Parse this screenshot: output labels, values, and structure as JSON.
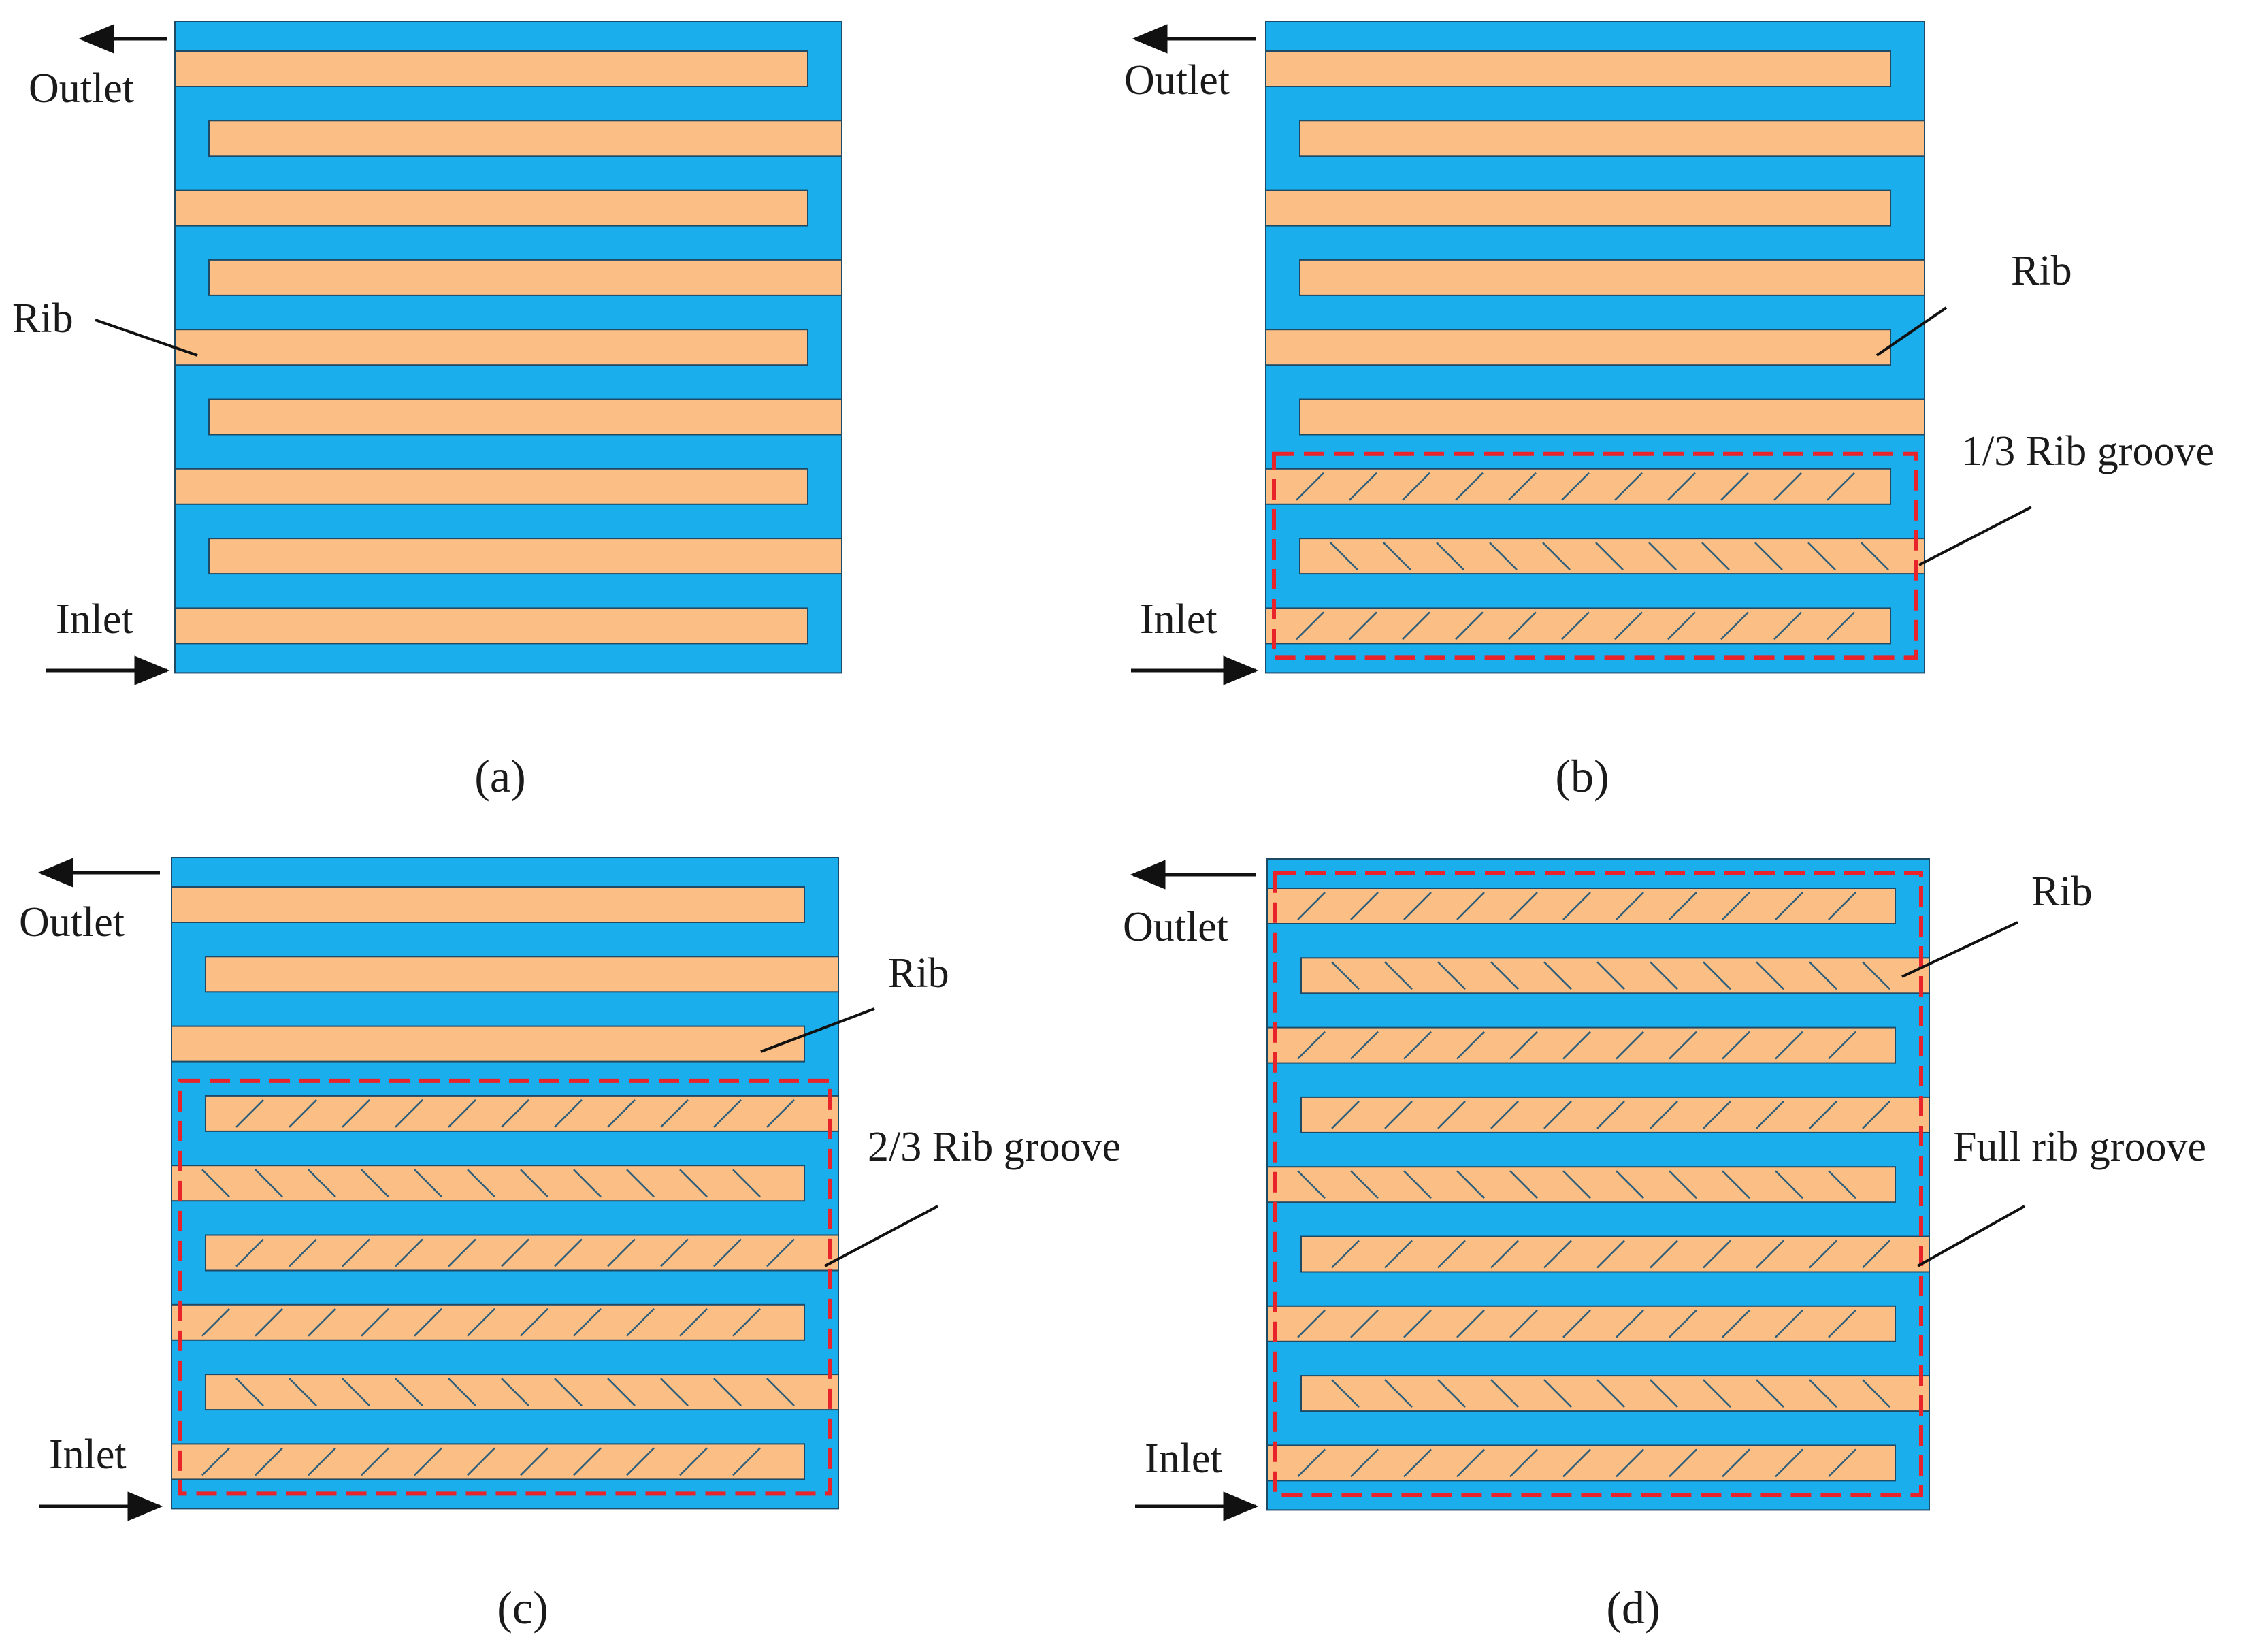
{
  "colors": {
    "channel": "#1AAFEC",
    "rib": "#FBBE84",
    "outline": "#1f4a66",
    "hatch": "#2c5d7a",
    "dashed_box": "#E8232A",
    "ink": "#111111"
  },
  "panels": [
    {
      "id": "a",
      "caption": "(a)",
      "ribs": [
        "plain",
        "plain",
        "plain",
        "plain",
        "plain",
        "plain",
        "plain",
        "plain",
        "plain"
      ],
      "labels": [
        {
          "key": "outlet",
          "text": "Outlet"
        },
        {
          "key": "rib",
          "text": "Rib"
        },
        {
          "key": "inlet",
          "text": "Inlet"
        }
      ],
      "groove_box": null
    },
    {
      "id": "b",
      "caption": "(b)",
      "ribs": [
        "plain",
        "plain",
        "plain",
        "plain",
        "plain",
        "plain",
        "hatch_right",
        "hatch_left",
        "hatch_right"
      ],
      "labels": [
        {
          "key": "outlet",
          "text": "Outlet"
        },
        {
          "key": "rib",
          "text": "Rib"
        },
        {
          "key": "groove",
          "text": "1/3 Rib groove"
        },
        {
          "key": "inlet",
          "text": "Inlet"
        }
      ],
      "groove_box": {
        "from_rib": 6,
        "to_rib": 8
      }
    },
    {
      "id": "c",
      "caption": "(c)",
      "ribs": [
        "plain",
        "plain",
        "plain",
        "hatch_right",
        "hatch_left",
        "hatch_right",
        "hatch_right",
        "hatch_left",
        "hatch_right"
      ],
      "labels": [
        {
          "key": "outlet",
          "text": "Outlet"
        },
        {
          "key": "rib",
          "text": "Rib"
        },
        {
          "key": "groove",
          "text": "2/3 Rib groove"
        },
        {
          "key": "inlet",
          "text": "Inlet"
        }
      ],
      "groove_box": {
        "from_rib": 3,
        "to_rib": 8
      }
    },
    {
      "id": "d",
      "caption": "(d)",
      "ribs": [
        "hatch_right",
        "hatch_left",
        "hatch_right",
        "hatch_right",
        "hatch_left",
        "hatch_right",
        "hatch_right",
        "hatch_left",
        "hatch_right"
      ],
      "labels": [
        {
          "key": "outlet",
          "text": "Outlet"
        },
        {
          "key": "rib",
          "text": "Rib"
        },
        {
          "key": "groove",
          "text": "Full rib groove"
        },
        {
          "key": "inlet",
          "text": "Inlet"
        }
      ],
      "groove_box": {
        "from_rib": 0,
        "to_rib": 8
      }
    }
  ]
}
